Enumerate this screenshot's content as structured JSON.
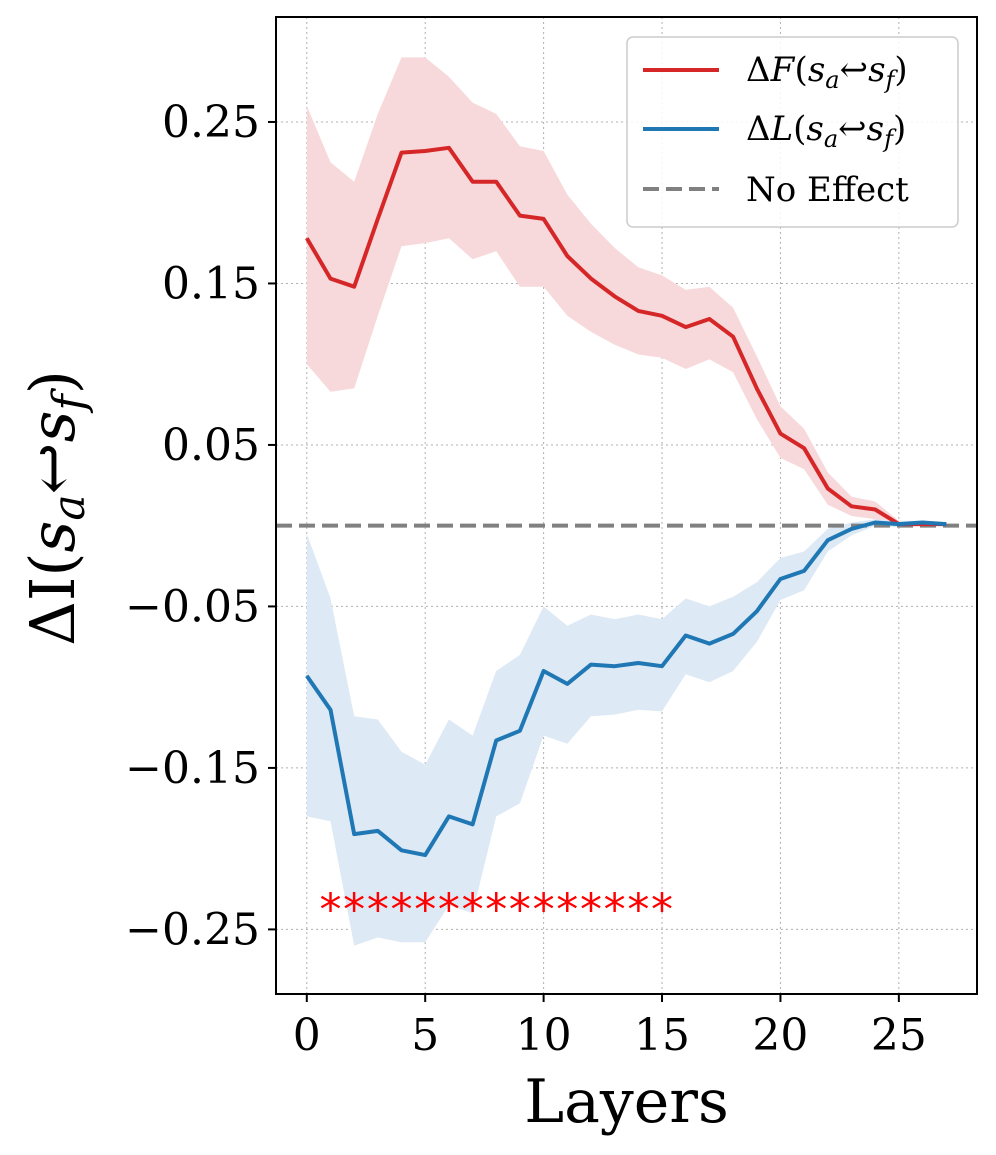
{
  "chart_data": {
    "type": "line",
    "xlabel": "Layers",
    "ylabel_main": "ΔI(",
    "ylabel_s": "s",
    "ylabel_a": "a",
    "ylabel_arrow": "↩",
    "ylabel_f": "f",
    "ylabel_close": ")",
    "xlim": [
      -1.3,
      28.3
    ],
    "ylim": [
      -0.29,
      0.315
    ],
    "xticks": [
      0,
      5,
      10,
      15,
      20,
      25
    ],
    "xtick_labels": [
      "0",
      "5",
      "10",
      "15",
      "20",
      "25"
    ],
    "yticks": [
      0.25,
      0.15,
      0.05,
      -0.05,
      -0.15,
      -0.25
    ],
    "ytick_labels": [
      "0.25",
      "0.15",
      "0.05",
      "−0.05",
      "−0.15",
      "−0.25"
    ],
    "grid": true,
    "legend_position": "top-right",
    "baseline": {
      "value": 0.0,
      "label": "No Effect",
      "color": "#808080",
      "style": "dashed"
    },
    "series": [
      {
        "name": "ΔF(s_a ↩ s_f)",
        "legend_delta": "Δ",
        "legend_letter": "F",
        "color": "#d62728",
        "band_color": "#f8d9db",
        "x": [
          0,
          1,
          2,
          3,
          4,
          5,
          6,
          7,
          8,
          9,
          10,
          11,
          12,
          13,
          14,
          15,
          16,
          17,
          18,
          19,
          20,
          21,
          22,
          23,
          24,
          25,
          26,
          27
        ],
        "values": [
          0.178,
          0.153,
          0.148,
          0.19,
          0.231,
          0.232,
          0.234,
          0.213,
          0.213,
          0.192,
          0.19,
          0.167,
          0.153,
          0.142,
          0.133,
          0.13,
          0.123,
          0.128,
          0.117,
          0.085,
          0.057,
          0.048,
          0.023,
          0.012,
          0.01,
          0.001,
          0.001,
          0.001
        ],
        "upper": [
          0.26,
          0.225,
          0.213,
          0.255,
          0.29,
          0.29,
          0.278,
          0.262,
          0.255,
          0.235,
          0.232,
          0.205,
          0.187,
          0.172,
          0.16,
          0.155,
          0.146,
          0.148,
          0.135,
          0.105,
          0.074,
          0.06,
          0.033,
          0.018,
          0.015,
          0.003,
          0.002,
          0.002
        ],
        "lower": [
          0.1,
          0.083,
          0.085,
          0.13,
          0.173,
          0.175,
          0.178,
          0.165,
          0.17,
          0.148,
          0.148,
          0.13,
          0.12,
          0.112,
          0.106,
          0.104,
          0.097,
          0.103,
          0.095,
          0.066,
          0.042,
          0.035,
          0.013,
          0.006,
          0.004,
          -0.001,
          0.0,
          0.0
        ]
      },
      {
        "name": "ΔL(s_a ↩ s_f)",
        "legend_delta": "Δ",
        "legend_letter": "L",
        "color": "#1f77b4",
        "band_color": "#dde9f5",
        "x": [
          0,
          1,
          2,
          3,
          4,
          5,
          6,
          7,
          8,
          9,
          10,
          11,
          12,
          13,
          14,
          15,
          16,
          17,
          18,
          19,
          20,
          21,
          22,
          23,
          24,
          25,
          26,
          27
        ],
        "values": [
          -0.093,
          -0.114,
          -0.191,
          -0.189,
          -0.201,
          -0.204,
          -0.18,
          -0.185,
          -0.133,
          -0.127,
          -0.09,
          -0.098,
          -0.086,
          -0.087,
          -0.085,
          -0.087,
          -0.068,
          -0.073,
          -0.067,
          -0.053,
          -0.033,
          -0.028,
          -0.009,
          -0.002,
          0.002,
          0.001,
          0.002,
          0.001
        ],
        "upper": [
          -0.005,
          -0.045,
          -0.118,
          -0.12,
          -0.14,
          -0.148,
          -0.12,
          -0.13,
          -0.09,
          -0.08,
          -0.05,
          -0.062,
          -0.055,
          -0.058,
          -0.055,
          -0.058,
          -0.045,
          -0.05,
          -0.044,
          -0.035,
          -0.02,
          -0.016,
          -0.002,
          0.002,
          0.004,
          0.003,
          0.003,
          0.002
        ],
        "lower": [
          -0.18,
          -0.183,
          -0.26,
          -0.255,
          -0.258,
          -0.258,
          -0.235,
          -0.24,
          -0.18,
          -0.172,
          -0.13,
          -0.135,
          -0.118,
          -0.117,
          -0.114,
          -0.115,
          -0.092,
          -0.097,
          -0.09,
          -0.072,
          -0.046,
          -0.04,
          -0.016,
          -0.006,
          0.0,
          -0.001,
          0.001,
          0.0
        ]
      }
    ],
    "significance": {
      "x": [
        1,
        2,
        3,
        4,
        5,
        6,
        7,
        8,
        9,
        10,
        11,
        12,
        13,
        14,
        15
      ],
      "y": -0.232,
      "marker": "*",
      "color": "#ff0000"
    }
  }
}
